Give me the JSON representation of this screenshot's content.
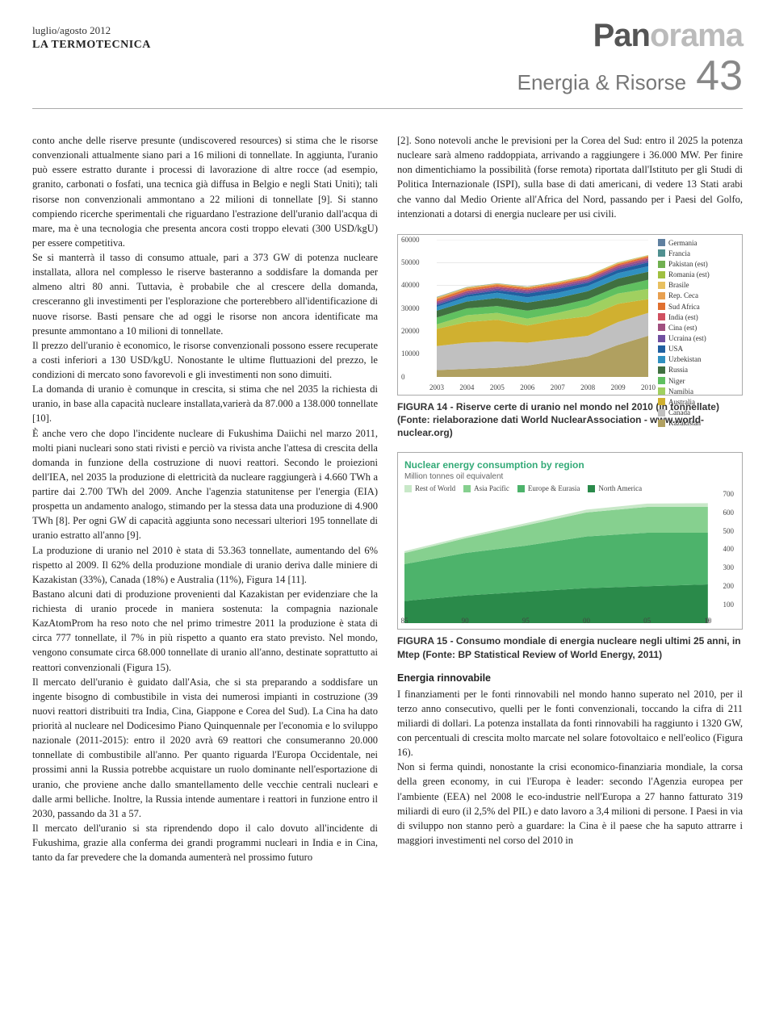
{
  "masthead": {
    "date": "luglio/agosto 2012",
    "publication": "LA TERMOTECNICA",
    "brand_part1": "Pan",
    "brand_part2": "orama",
    "section": "Energia & Risorse",
    "page": "43"
  },
  "body": {
    "left": [
      "conto anche delle riserve presunte (undiscovered resources) si stima che le risorse convenzionali attualmente siano pari a 16 milioni di tonnellate. In aggiunta, l'uranio può essere estratto durante i processi di lavorazione di altre rocce (ad esempio, granito, carbonati o fosfati, una tecnica già diffusa in Belgio e negli Stati Uniti); tali risorse non convenzionali ammontano a 22 milioni di tonnellate [9]. Si stanno compiendo ricerche sperimentali che riguardano l'estrazione dell'uranio dall'acqua di mare, ma è una tecnologia che presenta ancora costi troppo elevati (300 USD/kgU) per essere competitiva.",
      "Se si manterrà il tasso di consumo attuale, pari a 373 GW di potenza nucleare installata, allora nel complesso le riserve basteranno a soddisfare la domanda per almeno altri 80 anni. Tuttavia, è probabile che al crescere della domanda, cresceranno gli investimenti per l'esplorazione che porterebbero all'identificazione di nuove risorse. Basti pensare che ad oggi le risorse non ancora identificate ma presunte ammontano a 10 milioni di tonnellate.",
      "Il prezzo dell'uranio è economico, le risorse convenzionali possono essere recuperate a costi inferiori a 130 USD/kgU. Nonostante le ultime fluttuazioni del prezzo, le condizioni di mercato sono favorevoli e gli investimenti non sono dimuiti.",
      "La domanda di uranio è comunque in crescita, si stima che nel 2035 la richiesta di uranio, in base alla capacità nucleare installata,varierà da 87.000 a 138.000 tonnellate [10].",
      "È anche vero che dopo l'incidente nucleare di Fukushima Daiichi nel marzo 2011, molti piani nucleari sono stati rivisti e perciò va rivista anche l'attesa di crescita della domanda in funzione della costruzione di nuovi reattori. Secondo le proiezioni dell'IEA, nel 2035 la produzione di elettricità da nucleare raggiungerà i 4.660 TWh a partire dai 2.700 TWh del 2009. Anche l'agenzia statunitense per l'energia (EIA) prospetta un andamento analogo, stimando per la stessa data una produzione di 4.900 TWh [8]. Per ogni GW di capacità aggiunta sono necessari ulteriori 195 tonnellate di uranio estratto all'anno [9].",
      "La produzione di uranio nel 2010 è stata di 53.363 tonnellate, aumentando del 6% rispetto al 2009. Il 62% della produzione mondiale di uranio deriva dalle miniere di Kazakistan (33%), Canada (18%) e Australia (11%), Figura 14 [11].",
      "Bastano alcuni dati di produzione provenienti dal Kazakistan per evidenziare che la richiesta di uranio procede in maniera sostenuta: la compagnia nazionale KazAtomProm ha reso noto che nel primo trimestre 2011 la produzione è stata di circa 777 tonnellate, il 7% in più rispetto a quanto era stato previsto. Nel mondo, vengono consumate circa 68.000 tonnellate di uranio all'anno, destinate soprattutto ai reattori convenzionali (Figura 15).",
      "Il mercato dell'uranio è guidato dall'Asia, che si sta preparando a soddisfare un ingente bisogno di combustibile in vista dei numerosi impianti in costruzione (39 nuovi reattori distribuiti tra India, Cina, Giappone e Corea del Sud). La Cina ha dato priorità al nucleare nel Dodicesimo Piano Quinquennale per l'economia e lo sviluppo nazionale (2011-2015): entro il 2020 avrà 69 reattori che consumeranno 20.000 tonnellate di combustibile all'anno. Per quanto riguarda l'Europa Occidentale, nei prossimi anni la Russia potrebbe acquistare un ruolo dominante nell'esportazione di uranio, che proviene anche dallo smantellamento delle vecchie centrali nucleari e dalle armi belliche. Inoltre, la Russia intende aumentare i reattori in funzione entro il 2030, passando da 31 a 57.",
      "Il mercato dell'uranio si sta riprendendo dopo il calo dovuto all'incidente di Fukushima, grazie alla conferma dei grandi programmi nucleari in India e in Cina, tanto da far prevedere che la domanda aumenterà nel prossimo futuro"
    ],
    "right_intro": "[2]. Sono notevoli anche le previsioni per la Corea del Sud: entro il 2025 la potenza nucleare sarà almeno raddoppiata, arrivando a raggiungere i 36.000 MW. Per finire non dimentichiamo la possibilità (forse remota) riportata dall'Istituto per gli Studi di Politica Internazionale (ISPI), sulla base di dati americani, di vedere 13 Stati arabi che vanno dal Medio Oriente all'Africa del Nord, passando per i Paesi del Golfo, intenzionati a dotarsi di energia nucleare per usi civili.",
    "renewable_head": "Energia rinnovabile",
    "renewable": [
      "I finanziamenti per le fonti rinnovabili nel mondo hanno superato nel 2010, per il terzo anno consecutivo, quelli per le fonti convenzionali, toccando la cifra di 211 miliardi di dollari. La potenza installata da fonti rinnovabili ha raggiunto i 1320 GW, con percentuali di crescita molto marcate nel solare fotovoltaico e nell'eolico (Figura 16).",
      "Non si ferma quindi, nonostante la crisi economico-finanziaria mondiale, la corsa della green economy, in cui l'Europa è leader: secondo l'Agenzia europea per l'ambiente (EEA) nel 2008 le eco-industrie nell'Europa a 27 hanno fatturato 319 miliardi di euro (il 2,5% del PIL) e dato lavoro a 3,4 milioni di persone. I Paesi in via di sviluppo non stanno però a guardare: la Cina è il paese che ha saputo attrarre i maggiori investimenti nel corso del 2010 in"
    ]
  },
  "fig14": {
    "label": "FIGURA 14",
    "caption": " - Riserve certe di uranio nel mondo nel 2010 (in tonnellate) (Fonte: rielaborazione dati World NuclearAssociation - www.world-nuclear.org)",
    "type": "stacked-area",
    "background_color": "#ffffff",
    "grid_color": "#d0d0d0",
    "label_fontsize": 9,
    "xlim": [
      2003,
      2010
    ],
    "xticks": [
      2003,
      2004,
      2005,
      2006,
      2007,
      2008,
      2009,
      2010
    ],
    "ylim": [
      0,
      60000
    ],
    "yticks": [
      0,
      10000,
      20000,
      30000,
      40000,
      50000,
      60000
    ],
    "series": [
      {
        "name": "Kazakistan",
        "color": "#b0a060",
        "values": [
          3000,
          3500,
          4000,
          5000,
          7000,
          9000,
          14000,
          18000
        ]
      },
      {
        "name": "Canada",
        "color": "#c0c0c0",
        "values": [
          10500,
          11500,
          11500,
          10000,
          9500,
          9000,
          10000,
          10000
        ]
      },
      {
        "name": "Australia",
        "color": "#d0b030",
        "values": [
          7500,
          9000,
          9500,
          7500,
          8500,
          8500,
          8000,
          6000
        ]
      },
      {
        "name": "Namibia",
        "color": "#a0d060",
        "values": [
          2000,
          3000,
          3000,
          3000,
          3000,
          4500,
          4500,
          4500
        ]
      },
      {
        "name": "Niger",
        "color": "#60c060",
        "values": [
          3000,
          3000,
          3000,
          3500,
          3000,
          3000,
          3000,
          4000
        ]
      },
      {
        "name": "Russia",
        "color": "#407040",
        "values": [
          3000,
          3000,
          3500,
          3500,
          3500,
          3500,
          3500,
          3500
        ]
      },
      {
        "name": "Uzbekistan",
        "color": "#3090c0",
        "values": [
          1600,
          2000,
          2300,
          2300,
          2300,
          2300,
          2400,
          2400
        ]
      },
      {
        "name": "USA",
        "color": "#2060a0",
        "values": [
          800,
          900,
          1000,
          1700,
          1700,
          1400,
          1500,
          1700
        ]
      },
      {
        "name": "Ucraina (est)",
        "color": "#7050a0",
        "values": [
          800,
          800,
          800,
          800,
          850,
          800,
          850,
          850
        ]
      },
      {
        "name": "Cina (est)",
        "color": "#a05080",
        "values": [
          750,
          750,
          750,
          750,
          700,
          770,
          750,
          830
        ]
      },
      {
        "name": "India (est)",
        "color": "#d05060",
        "values": [
          230,
          230,
          230,
          180,
          270,
          270,
          290,
          400
        ]
      },
      {
        "name": "Sud Africa",
        "color": "#e07030",
        "values": [
          750,
          750,
          670,
          530,
          540,
          650,
          560,
          580
        ]
      },
      {
        "name": "Rep. Ceca",
        "color": "#e8a050",
        "values": [
          450,
          410,
          410,
          360,
          310,
          260,
          260,
          250
        ]
      },
      {
        "name": "Brasile",
        "color": "#e8c060",
        "values": [
          310,
          300,
          110,
          190,
          300,
          330,
          350,
          150
        ]
      },
      {
        "name": "Romania (est)",
        "color": "#a0c040",
        "values": [
          90,
          90,
          90,
          90,
          80,
          80,
          80,
          80
        ]
      },
      {
        "name": "Pakistan (est)",
        "color": "#70b050",
        "values": [
          45,
          45,
          45,
          45,
          45,
          45,
          50,
          45
        ]
      },
      {
        "name": "Francia",
        "color": "#509090",
        "values": [
          0,
          7,
          7,
          5,
          4,
          5,
          8,
          7
        ]
      },
      {
        "name": "Germania",
        "color": "#6080a0",
        "values": [
          150,
          80,
          90,
          65,
          40,
          0,
          0,
          0
        ]
      }
    ]
  },
  "fig15": {
    "label": "FIGURA 15",
    "caption": " - Consumo mondiale di energia nucleare negli ultimi 25 anni, in Mtep (Fonte: BP Statistical Review of World Energy, 2011)",
    "type": "stacked-area",
    "title": "Nuclear energy consumption by region",
    "subtitle": "Million tonnes oil equivalent",
    "background_color": "#ffffff",
    "label_fontsize": 9,
    "xlim": [
      85,
      110
    ],
    "xticks": [
      "85",
      "90",
      "95",
      "00",
      "05",
      "10",
      "0"
    ],
    "ylim": [
      0,
      700
    ],
    "yticks": [
      100,
      200,
      300,
      400,
      500,
      600,
      700
    ],
    "series": [
      {
        "name": "North America",
        "color": "#2a8a4a",
        "values": [
          120,
          150,
          170,
          190,
          200,
          210
        ]
      },
      {
        "name": "Europe & Eurasia",
        "color": "#4db36b",
        "values": [
          200,
          230,
          250,
          280,
          290,
          280
        ]
      },
      {
        "name": "Asia Pacific",
        "color": "#86d08f",
        "values": [
          60,
          80,
          110,
          130,
          140,
          140
        ]
      },
      {
        "name": "Rest of World",
        "color": "#c8e8c8",
        "values": [
          10,
          10,
          12,
          15,
          18,
          20
        ]
      }
    ],
    "x_positions": [
      85,
      90,
      95,
      100,
      105,
      110
    ]
  }
}
